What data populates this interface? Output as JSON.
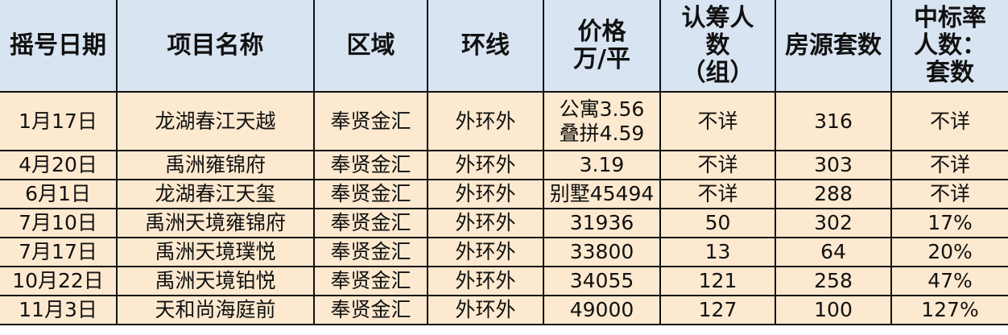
{
  "table": {
    "headers": [
      [
        "摇号日期"
      ],
      [
        "项目名称"
      ],
      [
        "区域"
      ],
      [
        "环线"
      ],
      [
        "价格",
        "万/平"
      ],
      [
        "认筹人",
        "数",
        "（组）"
      ],
      [
        "房源套数"
      ],
      [
        "中标率",
        "人数：",
        "套数"
      ]
    ],
    "rows": [
      {
        "date": "1月17日",
        "project": "龙湖春江天越",
        "region": "奉贤金汇",
        "ring": "外环外",
        "price": [
          "公寓3.56",
          "叠拼4.59"
        ],
        "subscribers": "不详",
        "units": "316",
        "rate": "不详"
      },
      {
        "date": "4月20日",
        "project": "禹洲雍锦府",
        "region": "奉贤金汇",
        "ring": "外环外",
        "price": [
          "3.19"
        ],
        "subscribers": "不详",
        "units": "303",
        "rate": "不详"
      },
      {
        "date": "6月1日",
        "project": "龙湖春江天玺",
        "region": "奉贤金汇",
        "ring": "外环外",
        "price": [
          "别墅45494"
        ],
        "subscribers": "不详",
        "units": "288",
        "rate": "不详"
      },
      {
        "date": "7月10日",
        "project": "禹洲天境雍锦府",
        "region": "奉贤金汇",
        "ring": "外环外",
        "price": [
          "31936"
        ],
        "subscribers": "50",
        "units": "302",
        "rate": "17%"
      },
      {
        "date": "7月17日",
        "project": "禹洲天境璞悦",
        "region": "奉贤金汇",
        "ring": "外环外",
        "price": [
          "33800"
        ],
        "subscribers": "13",
        "units": "64",
        "rate": "20%"
      },
      {
        "date": "10月22日",
        "project": "禹洲天境铂悦",
        "region": "奉贤金汇",
        "ring": "外环外",
        "price": [
          "34055"
        ],
        "subscribers": "121",
        "units": "258",
        "rate": "47%"
      },
      {
        "date": "11月3日",
        "project": "天和尚海庭前",
        "region": "奉贤金汇",
        "ring": "外环外",
        "price": [
          "49000"
        ],
        "subscribers": "127",
        "units": "100",
        "rate": "127%"
      }
    ]
  },
  "colors": {
    "header_bg": "#d9e4f2",
    "body_bg": "#fde9cf",
    "border": "#111111"
  }
}
